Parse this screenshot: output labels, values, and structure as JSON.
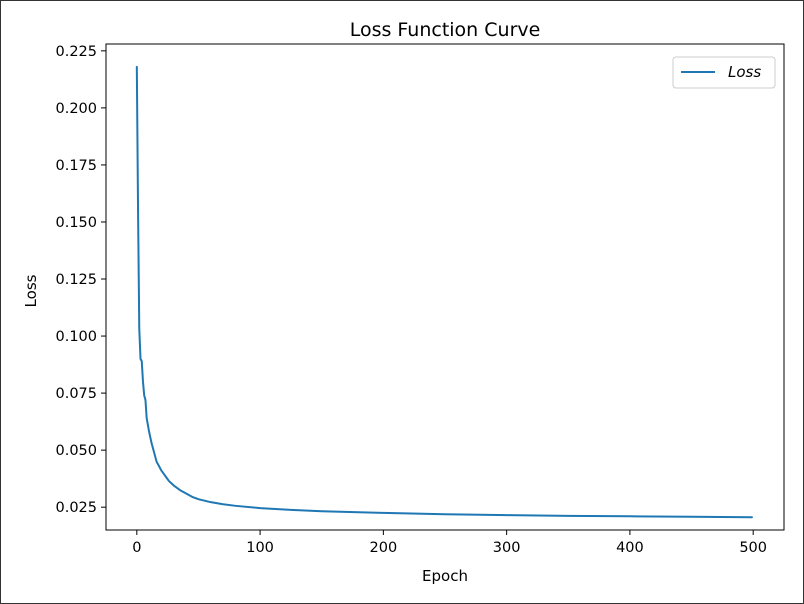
{
  "chart_data": {
    "type": "line",
    "title": "Loss Function Curve",
    "xlabel": "Epoch",
    "ylabel": "Loss",
    "xlim": [
      -25,
      525
    ],
    "ylim": [
      0.015,
      0.228
    ],
    "xticks": [
      0,
      100,
      200,
      300,
      400,
      500
    ],
    "xtick_labels": [
      "0",
      "100",
      "200",
      "300",
      "400",
      "500"
    ],
    "yticks": [
      0.025,
      0.05,
      0.075,
      0.1,
      0.125,
      0.15,
      0.175,
      0.2,
      0.225
    ],
    "ytick_labels": [
      "0.025",
      "0.050",
      "0.075",
      "0.100",
      "0.125",
      "0.150",
      "0.175",
      "0.200",
      "0.225"
    ],
    "grid": false,
    "legend": {
      "position": "upper right",
      "entries": [
        "Loss"
      ]
    },
    "series": [
      {
        "name": "Loss",
        "color": "#1f77b4",
        "x": [
          0,
          1,
          2,
          3,
          4,
          5,
          6,
          7,
          8,
          9,
          10,
          12,
          14,
          16,
          18,
          20,
          22,
          24,
          26,
          28,
          30,
          35,
          40,
          45,
          50,
          60,
          70,
          80,
          100,
          125,
          150,
          200,
          250,
          300,
          350,
          400,
          450,
          499
        ],
        "y": [
          0.218,
          0.155,
          0.103,
          0.09,
          0.089,
          0.08,
          0.074,
          0.072,
          0.064,
          0.061,
          0.058,
          0.053,
          0.049,
          0.045,
          0.043,
          0.041,
          0.0395,
          0.038,
          0.0365,
          0.0355,
          0.0345,
          0.0325,
          0.031,
          0.0295,
          0.0285,
          0.0272,
          0.0263,
          0.0256,
          0.0246,
          0.0238,
          0.0232,
          0.0225,
          0.0219,
          0.0215,
          0.0212,
          0.021,
          0.0208,
          0.0206
        ]
      }
    ]
  }
}
